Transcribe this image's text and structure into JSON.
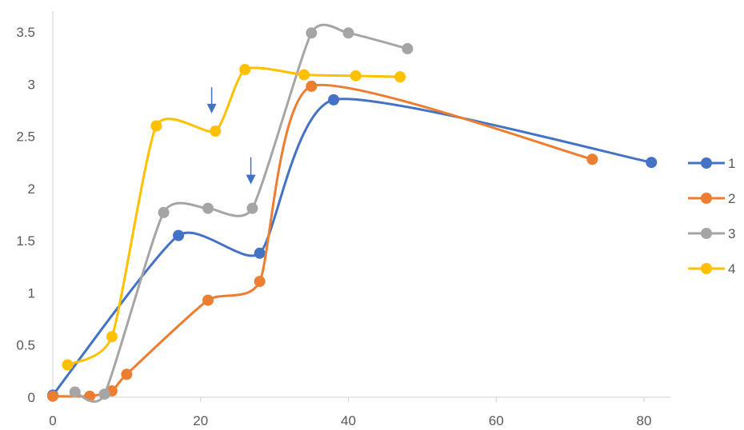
{
  "chart_data": {
    "type": "line",
    "smooth": true,
    "title": "",
    "xlabel": "",
    "ylabel": "",
    "xlim": [
      0,
      80
    ],
    "ylim": [
      0,
      3.5
    ],
    "x_ticks": [
      0,
      20,
      40,
      60,
      80
    ],
    "y_ticks": [
      0,
      0.5,
      1,
      1.5,
      2,
      2.5,
      3,
      3.5
    ],
    "grid": false,
    "legend_position": "right",
    "series": [
      {
        "name": "1",
        "color": "#4472C4",
        "points": [
          [
            0,
            0.02
          ],
          [
            17,
            1.55
          ],
          [
            28,
            1.38
          ],
          [
            38,
            2.85
          ],
          [
            81,
            2.25
          ]
        ]
      },
      {
        "name": "2",
        "color": "#ED7D31",
        "points": [
          [
            0,
            0.01
          ],
          [
            5,
            0.01
          ],
          [
            8,
            0.06
          ],
          [
            10,
            0.22
          ],
          [
            21,
            0.93
          ],
          [
            28,
            1.11
          ],
          [
            35,
            2.98
          ],
          [
            73,
            2.28
          ]
        ]
      },
      {
        "name": "3",
        "color": "#A5A5A5",
        "points": [
          [
            3,
            0.05
          ],
          [
            7,
            0.03
          ],
          [
            15,
            1.77
          ],
          [
            21,
            1.81
          ],
          [
            27,
            1.81
          ],
          [
            35,
            3.49
          ],
          [
            40,
            3.49
          ],
          [
            48,
            3.34
          ]
        ]
      },
      {
        "name": "4",
        "color": "#FFC000",
        "points": [
          [
            2,
            0.31
          ],
          [
            8,
            0.58
          ],
          [
            14,
            2.6
          ],
          [
            22,
            2.55
          ],
          [
            26,
            3.14
          ],
          [
            34,
            3.09
          ],
          [
            41,
            3.08
          ],
          [
            47,
            3.07
          ]
        ]
      }
    ],
    "annotations": [
      {
        "type": "arrow",
        "direction": "down",
        "color": "#4472C4",
        "x": 21.5,
        "y_from": 2.97,
        "y_to": 2.72
      },
      {
        "type": "arrow",
        "direction": "down",
        "color": "#4472C4",
        "x": 26.8,
        "y_from": 2.3,
        "y_to": 2.04
      }
    ]
  }
}
